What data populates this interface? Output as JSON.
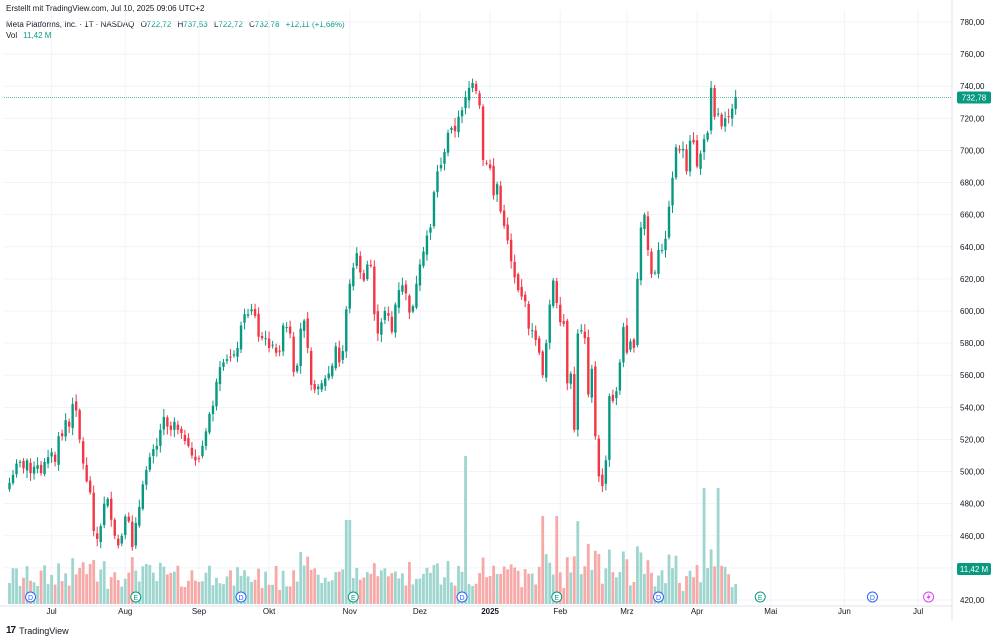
{
  "header": {
    "created": "Erstellt mit TradingView.com, Jul 10, 2025 09:06 UTC+2",
    "symbol": "Meta Platforms, Inc. · 1T · NASDAQ",
    "o_label": "O",
    "o_value": "722,72",
    "h_label": "H",
    "h_value": "737,53",
    "l_label": "L",
    "l_value": "722,72",
    "c_label": "C",
    "c_value": "732,78",
    "change": "+12,11 (+1,68%)",
    "vol_label": "Vol",
    "vol_value": "11,42 M"
  },
  "price_label": "732,78",
  "volume_label": "11,42 M",
  "footer": {
    "logo": "17",
    "text": "TradingView"
  },
  "chart_data": {
    "type": "candlestick",
    "y_ticks": [
      "780,00",
      "760,00",
      "740,00",
      "720,00",
      "700,00",
      "680,00",
      "660,00",
      "640,00",
      "620,00",
      "600,00",
      "580,00",
      "560,00",
      "540,00",
      "520,00",
      "500,00",
      "480,00",
      "460,00",
      "440,00",
      "420,00"
    ],
    "y_range": [
      410,
      785
    ],
    "x_ticks": [
      {
        "label": "Jul",
        "i": 12
      },
      {
        "label": "Aug",
        "i": 33
      },
      {
        "label": "Sep",
        "i": 54
      },
      {
        "label": "Okt",
        "i": 74
      },
      {
        "label": "Nov",
        "i": 97
      },
      {
        "label": "Dez",
        "i": 117
      },
      {
        "label": "2025",
        "i": 137
      },
      {
        "label": "Feb",
        "i": 157
      },
      {
        "label": "Mrz",
        "i": 176
      },
      {
        "label": "Apr",
        "i": 196
      },
      {
        "label": "Mai",
        "i": 217
      },
      {
        "label": "Jun",
        "i": 238
      },
      {
        "label": "Jul",
        "i": 259
      }
    ],
    "markers": [
      {
        "i": 6,
        "t": "D"
      },
      {
        "i": 36,
        "t": "E"
      },
      {
        "i": 66,
        "t": "D"
      },
      {
        "i": 98,
        "t": "E"
      },
      {
        "i": 129,
        "t": "D"
      },
      {
        "i": 156,
        "t": "E"
      },
      {
        "i": 185,
        "t": "D"
      },
      {
        "i": 214,
        "t": "E"
      },
      {
        "i": 246,
        "t": "D"
      },
      {
        "i": 262,
        "t": "flash"
      }
    ],
    "close": [
      493,
      498,
      505,
      506,
      502,
      507,
      499,
      503,
      504,
      499,
      506,
      509,
      512,
      506,
      522,
      522,
      532,
      528,
      542,
      538,
      520,
      505,
      494,
      487,
      463,
      458,
      466,
      480,
      483,
      470,
      460,
      454,
      460,
      472,
      469,
      453,
      468,
      478,
      492,
      501,
      509,
      514,
      516,
      526,
      534,
      528,
      526,
      531,
      526,
      524,
      519,
      516,
      510,
      507,
      508,
      516,
      525,
      536,
      541,
      556,
      565,
      568,
      570,
      571,
      573,
      577,
      591,
      598,
      598,
      601,
      597,
      584,
      583,
      583,
      577,
      579,
      574,
      575,
      591,
      590,
      586,
      562,
      566,
      589,
      594,
      577,
      554,
      551,
      553,
      555,
      558,
      561,
      566,
      578,
      568,
      575,
      601,
      617,
      627,
      636,
      624,
      619,
      629,
      628,
      598,
      586,
      593,
      600,
      597,
      587,
      604,
      613,
      616,
      611,
      599,
      603,
      617,
      629,
      637,
      647,
      652,
      674,
      687,
      691,
      699,
      711,
      714,
      712,
      721,
      725,
      733,
      739,
      742,
      737,
      728,
      694,
      692,
      689,
      672,
      679,
      662,
      653,
      644,
      631,
      621,
      613,
      609,
      606,
      589,
      588,
      582,
      574,
      560,
      580,
      604,
      619,
      605,
      593,
      592,
      555,
      561,
      526,
      586,
      588,
      583,
      548,
      564,
      522,
      497,
      491,
      507,
      547,
      544,
      550,
      568,
      590,
      574,
      581,
      577,
      620,
      652,
      660,
      638,
      623,
      624,
      638,
      638,
      645,
      665,
      683,
      702,
      700,
      701,
      687,
      706,
      705,
      690,
      698,
      707,
      711,
      739,
      721,
      723,
      715,
      720,
      721,
      726,
      733
    ],
    "open_seed": 489,
    "high_wick": 4,
    "low_wick": 4,
    "volume_max": 40,
    "volume_seed": "fixed"
  }
}
